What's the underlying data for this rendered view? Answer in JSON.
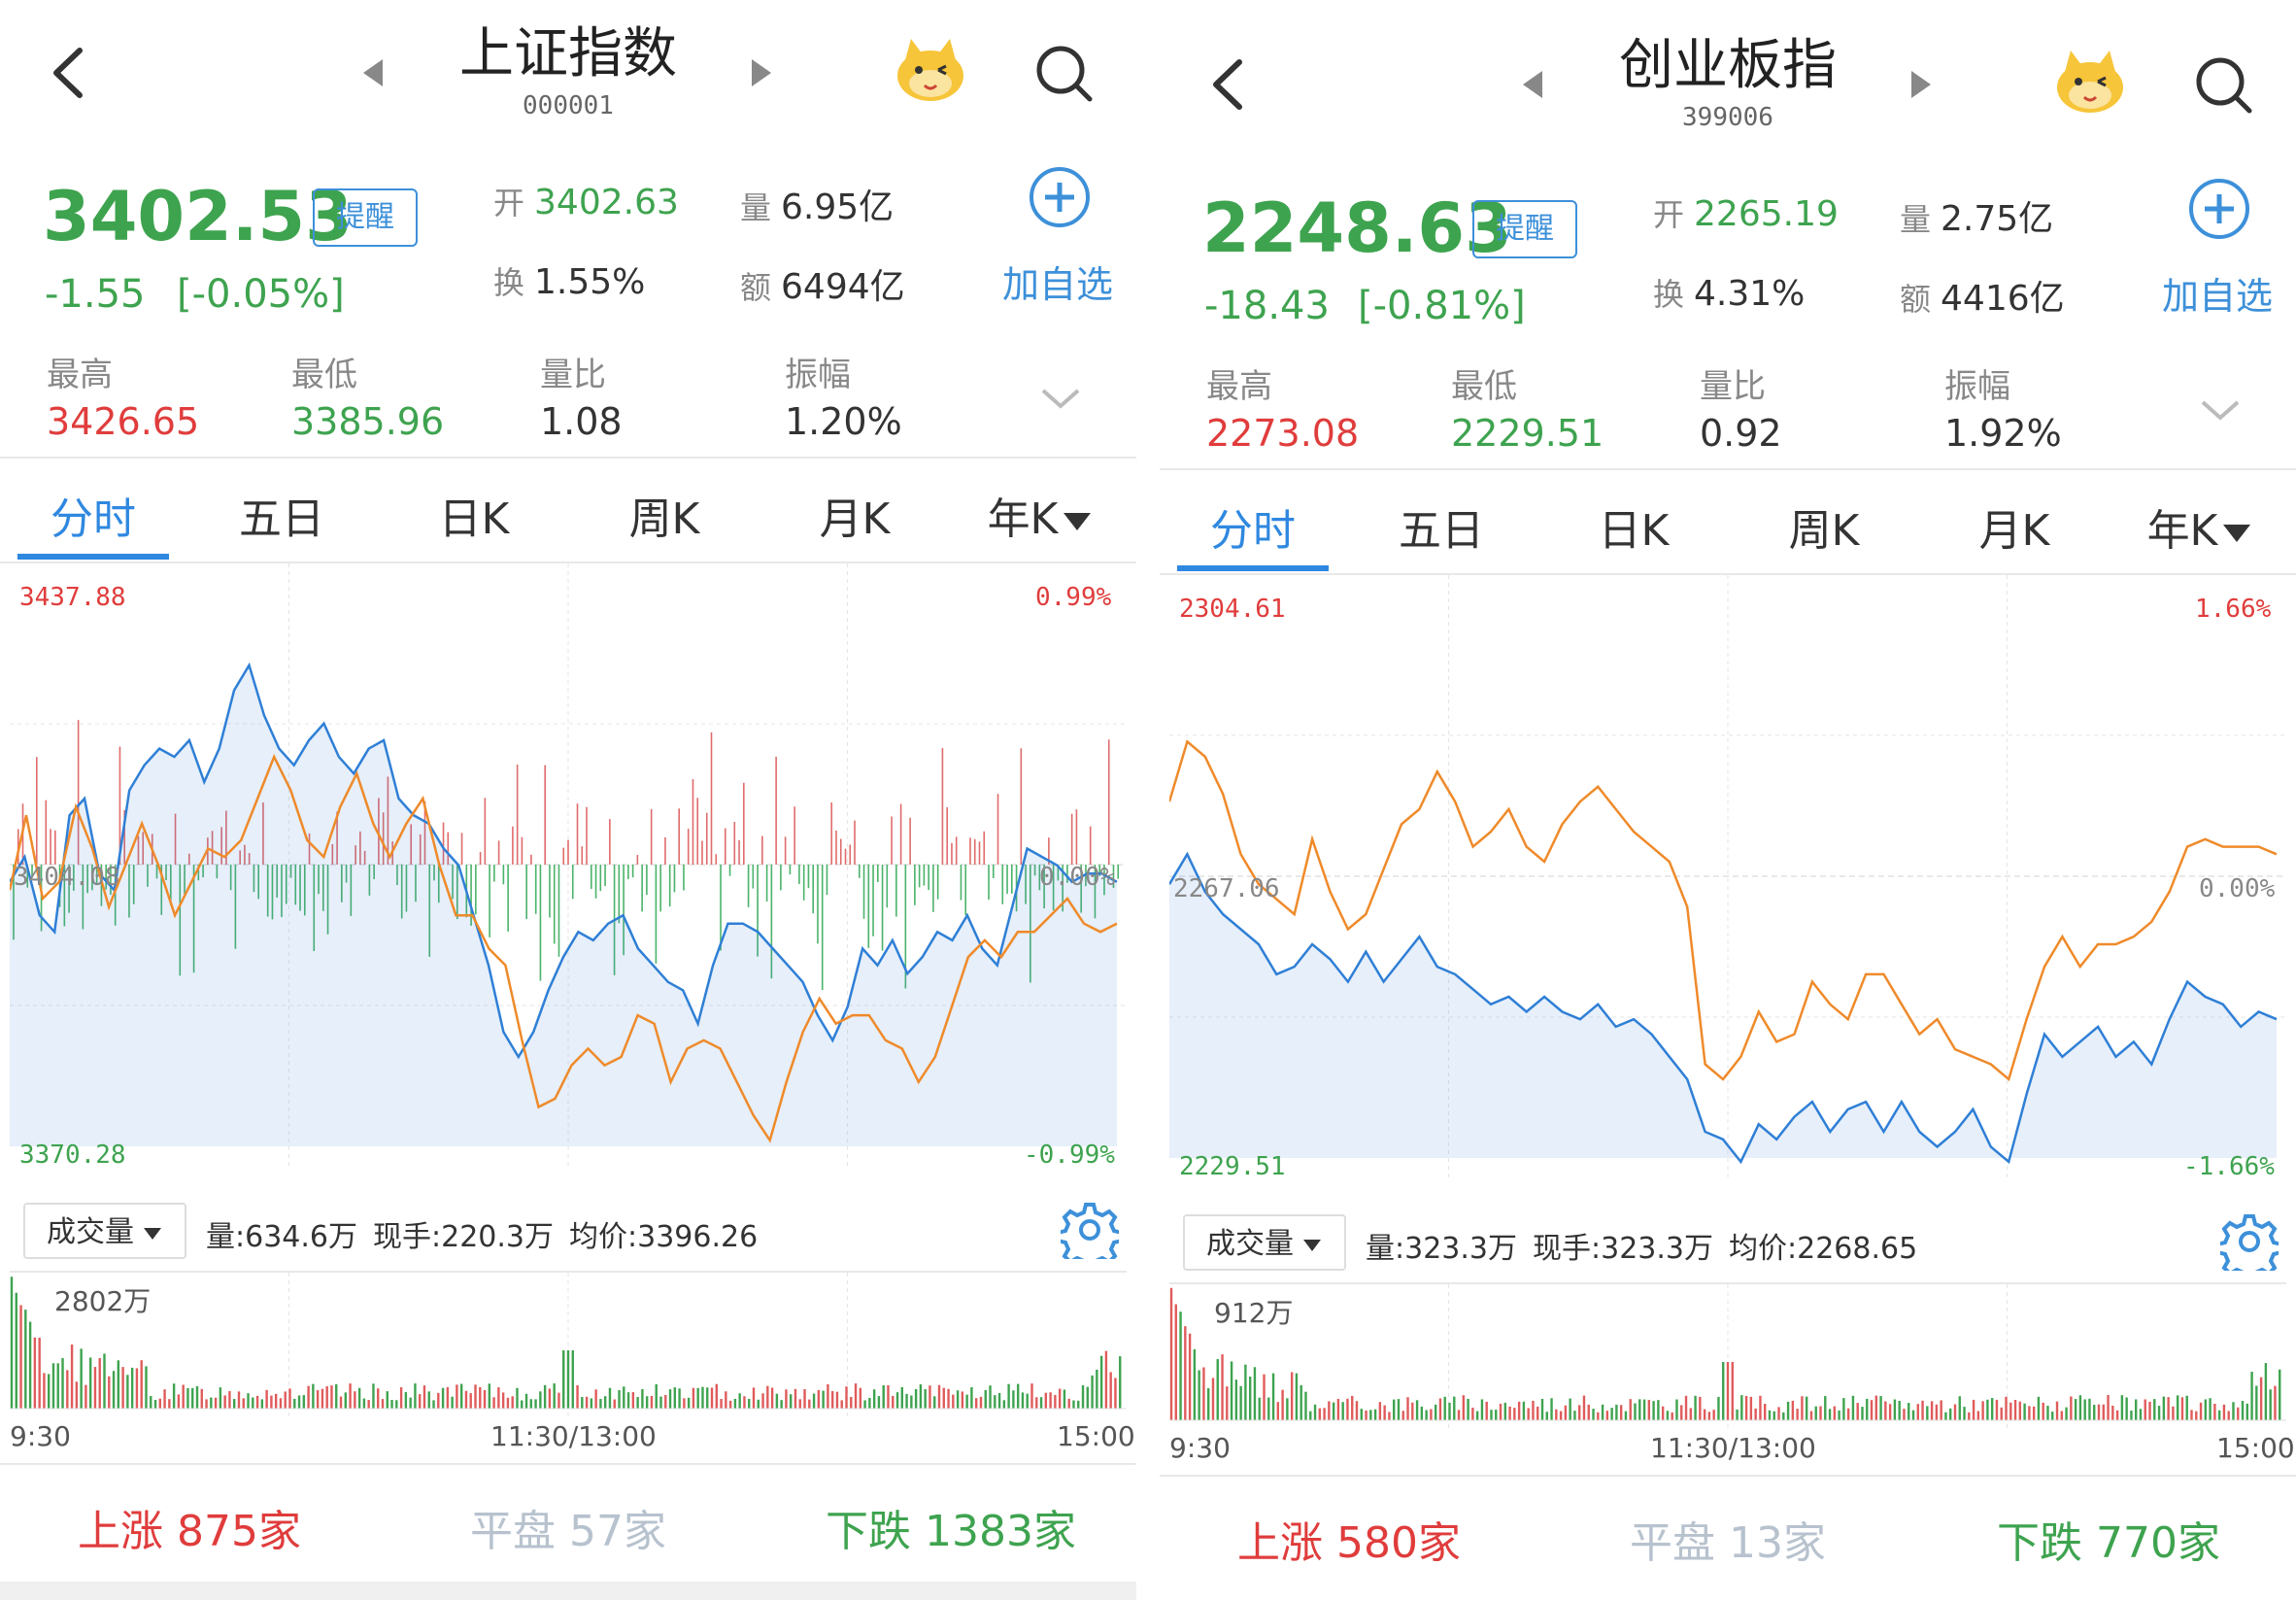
{
  "panels": [
    {
      "title": "上证指数",
      "code": "000001",
      "price": "3402.53",
      "remind_label": "提醒",
      "change": "-1.55",
      "change_pct": "[-0.05%]",
      "open_label": "开",
      "open": "3402.63",
      "volume_label": "量",
      "volume": "6.95亿",
      "turnover_label": "换",
      "turnover": "1.55%",
      "amount_label": "额",
      "amount": "6494亿",
      "add_watch_label": "加自选",
      "stats": [
        {
          "label": "最高",
          "value": "3426.65",
          "color": "#e03c3c"
        },
        {
          "label": "最低",
          "value": "3385.96",
          "color": "#3ea34f"
        },
        {
          "label": "量比",
          "value": "1.08",
          "color": "#333333"
        },
        {
          "label": "振幅",
          "value": "1.20%",
          "color": "#333333"
        }
      ],
      "tabs": [
        "分时",
        "五日",
        "日K",
        "周K",
        "月K",
        "年K"
      ],
      "active_tab": "分时",
      "chart": {
        "y_high": "3437.88",
        "y_low": "3370.28",
        "y_mid": "3404.08",
        "pct_high": "0.99%",
        "pct_low": "-0.99%",
        "pct_mid": "0.00%"
      },
      "volume_selector": "成交量",
      "vol_info": {
        "volume": "量:634.6万",
        "current": "现手:220.3万",
        "avg": "均价:3396.26"
      },
      "vol_max": "2802万",
      "times": {
        "open": "9:30",
        "mid": "11:30/13:00",
        "close": "15:00"
      },
      "breadth": {
        "up_label": "上涨",
        "up": "875家",
        "flat_label": "平盘",
        "flat": "57家",
        "down_label": "下跌",
        "down": "1383家"
      }
    },
    {
      "title": "创业板指",
      "code": "399006",
      "price": "2248.63",
      "remind_label": "提醒",
      "change": "-18.43",
      "change_pct": "[-0.81%]",
      "open_label": "开",
      "open": "2265.19",
      "volume_label": "量",
      "volume": "2.75亿",
      "turnover_label": "换",
      "turnover": "4.31%",
      "amount_label": "额",
      "amount": "4416亿",
      "add_watch_label": "加自选",
      "stats": [
        {
          "label": "最高",
          "value": "2273.08",
          "color": "#e03c3c"
        },
        {
          "label": "最低",
          "value": "2229.51",
          "color": "#3ea34f"
        },
        {
          "label": "量比",
          "value": "0.92",
          "color": "#333333"
        },
        {
          "label": "振幅",
          "value": "1.92%",
          "color": "#333333"
        }
      ],
      "tabs": [
        "分时",
        "五日",
        "日K",
        "周K",
        "月K",
        "年K"
      ],
      "active_tab": "分时",
      "chart": {
        "y_high": "2304.61",
        "y_low": "2229.51",
        "y_mid": "2267.06",
        "pct_high": "1.66%",
        "pct_low": "-1.66%",
        "pct_mid": "0.00%"
      },
      "volume_selector": "成交量",
      "vol_info": {
        "volume": "量:323.3万",
        "current": "现手:323.3万",
        "avg": "均价:2268.65"
      },
      "vol_max": "912万",
      "times": {
        "open": "9:30",
        "mid": "11:30/13:00",
        "close": "15:00"
      },
      "breadth": {
        "up_label": "上涨",
        "up": "580家",
        "flat_label": "平盘",
        "flat": "13家",
        "down_label": "下跌",
        "down": "770家"
      }
    }
  ],
  "chart_data": [
    {
      "type": "line",
      "ylim": [
        3370.28,
        3437.88
      ],
      "baseline": 3404.08,
      "series": [
        {
          "color": "#2f7fd6",
          "values": [
            3402,
            3405,
            3398,
            3396,
            3410,
            3412,
            3403,
            3401,
            3413,
            3416,
            3418,
            3417,
            3419,
            3414,
            3418,
            3425,
            3428,
            3422,
            3418,
            3416,
            3419,
            3421,
            3417,
            3415,
            3418,
            3419,
            3412,
            3410,
            3409,
            3406,
            3404,
            3398,
            3392,
            3384,
            3381,
            3384,
            3389,
            3393,
            3396,
            3395,
            3397,
            3398,
            3394,
            3392,
            3390,
            3389,
            3385,
            3392,
            3397,
            3397,
            3396,
            3394,
            3392,
            3390,
            3386,
            3383,
            3387,
            3394,
            3392,
            3395,
            3391,
            3393,
            3396,
            3395,
            3398,
            3394,
            3392,
            3399,
            3406,
            3405,
            3404,
            3402,
            3403,
            3403,
            3402
          ]
        },
        {
          "color": "#ef8a2a",
          "values": [
            3401,
            3410,
            3400,
            3402,
            3411,
            3406,
            3399,
            3404,
            3409,
            3404,
            3398,
            3402,
            3406,
            3405,
            3407,
            3412,
            3417,
            3413,
            3407,
            3405,
            3411,
            3415,
            3409,
            3405,
            3409,
            3412,
            3404,
            3398,
            3398,
            3394,
            3392,
            3383,
            3375,
            3376,
            3380,
            3382,
            3380,
            3381,
            3386,
            3385,
            3378,
            3382,
            3383,
            3382,
            3378,
            3374,
            3371,
            3378,
            3384,
            3388,
            3385,
            3386,
            3386,
            3383,
            3382,
            3378,
            3381,
            3387,
            3393,
            3395,
            3393,
            3396,
            3396,
            3398,
            3400,
            3397,
            3396,
            3397
          ]
        }
      ]
    },
    {
      "type": "line",
      "ylim": [
        2229.51,
        2304.61
      ],
      "baseline": 2267.06,
      "series": [
        {
          "color": "#2f7fd6",
          "values": [
            2266,
            2270,
            2265,
            2262,
            2260,
            2258,
            2254,
            2255,
            2258,
            2256,
            2253,
            2257,
            2253,
            2256,
            2259,
            2255,
            2254,
            2252,
            2250,
            2251,
            2249,
            2251,
            2249,
            2248,
            2250,
            2247,
            2248,
            2246,
            2243,
            2240,
            2233,
            2232,
            2229,
            2234,
            2232,
            2235,
            2237,
            2233,
            2236,
            2237,
            2233,
            2237,
            2233,
            2231,
            2233,
            2236,
            2231,
            2229,
            2238,
            2246,
            2243,
            2245,
            2247,
            2243,
            2245,
            2242,
            2248,
            2253,
            2251,
            2250,
            2247,
            2249,
            2248
          ]
        },
        {
          "color": "#ef8a2a",
          "values": [
            2277,
            2285,
            2283,
            2278,
            2270,
            2266,
            2264,
            2262,
            2272,
            2265,
            2260,
            2262,
            2268,
            2274,
            2276,
            2281,
            2277,
            2271,
            2273,
            2276,
            2271,
            2269,
            2274,
            2277,
            2279,
            2276,
            2273,
            2271,
            2269,
            2263,
            2242,
            2240,
            2243,
            2249,
            2245,
            2246,
            2253,
            2250,
            2248,
            2254,
            2254,
            2250,
            2246,
            2248,
            2244,
            2243,
            2242,
            2240,
            2248,
            2255,
            2259,
            2255,
            2258,
            2258,
            2259,
            2261,
            2265,
            2271,
            2272,
            2271,
            2271,
            2271,
            2270
          ]
        }
      ]
    }
  ]
}
